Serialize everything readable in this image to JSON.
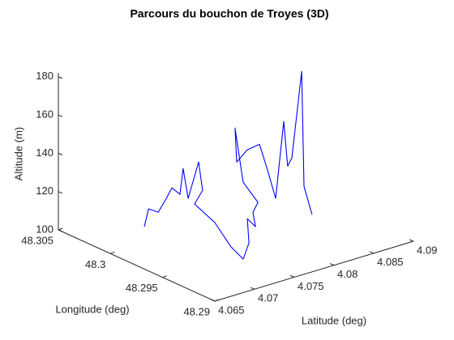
{
  "chart_data": {
    "type": "line3d",
    "title": "Parcours du bouchon de Troyes (3D)",
    "xlabel": "Latitude (deg)",
    "ylabel": "Longitude (deg)",
    "zlabel": "Altitude (m)",
    "color": "#0000ff",
    "xlim": [
      4.065,
      4.09
    ],
    "xticks": [
      4.065,
      4.07,
      4.075,
      4.08,
      4.085,
      4.09
    ],
    "ylim": [
      48.29,
      48.305
    ],
    "yticks": [
      48.29,
      48.295,
      48.3,
      48.305
    ],
    "zlim": [
      100,
      182
    ],
    "zticks": [
      100,
      120,
      140,
      160,
      180
    ],
    "x": [
      4.07045,
      4.0715,
      4.07233,
      4.07268,
      4.07293,
      4.07375,
      4.07415,
      4.07433,
      4.07545,
      4.0755,
      4.0758,
      4.07678,
      4.07525,
      4.07415,
      4.07473,
      4.0764,
      4.07728,
      4.07695,
      4.07768,
      4.078,
      4.07875,
      4.07768,
      4.07923,
      4.08013,
      4.0806,
      4.08095,
      4.08225,
      4.08215,
      4.08285,
      4.08365,
      4.08288,
      4.08358
    ],
    "y": [
      48.30091,
      48.30131,
      48.30101,
      48.3005,
      48.30016,
      48.30001,
      48.30001,
      48.29966,
      48.29951,
      48.29917,
      48.30017,
      48.29897,
      48.29626,
      48.29425,
      48.29414,
      48.29557,
      48.29546,
      48.29545,
      48.29552,
      48.29719,
      48.29854,
      48.29756,
      48.29774,
      48.29725,
      48.29683,
      48.29632,
      48.29653,
      48.29608,
      48.29621,
      48.29588,
      48.29507,
      48.29483
    ],
    "z": [
      105,
      112,
      110,
      118,
      124,
      120,
      133,
      118,
      136,
      122,
      112,
      104,
      100,
      100,
      108,
      115,
      110,
      118,
      122,
      128,
      152,
      138,
      142,
      145,
      132,
      118,
      156,
      134,
      137,
      182,
      125,
      110
    ]
  }
}
